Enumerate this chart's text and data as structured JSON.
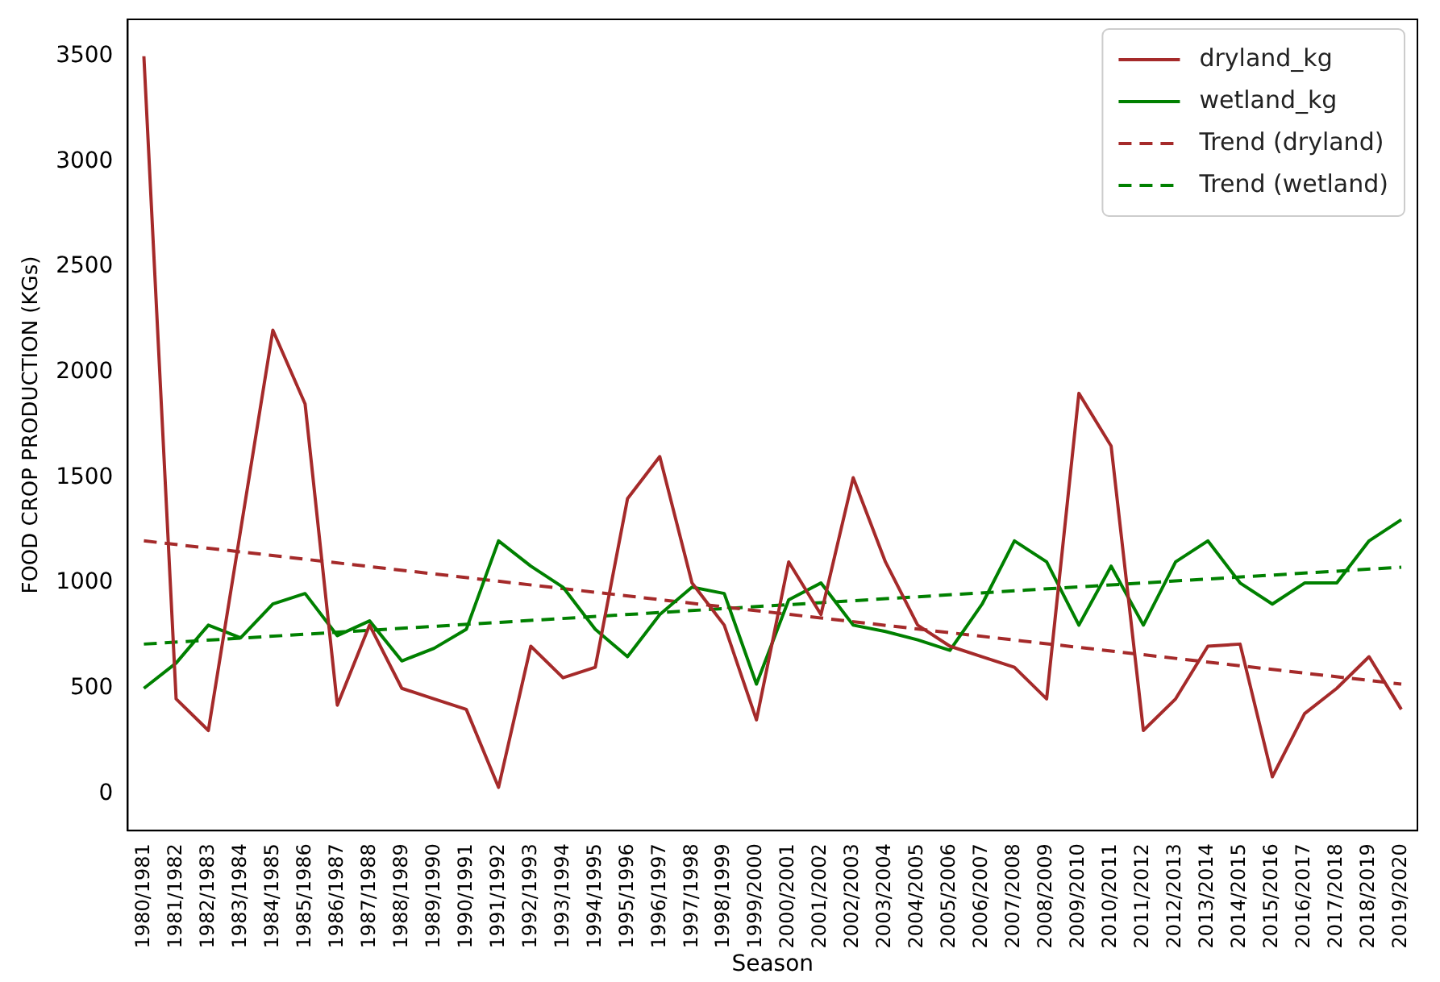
{
  "chart_data": {
    "type": "line",
    "xlabel": "Season",
    "ylabel": "FOOD CROP PRODUCTION (KGs)",
    "categories": [
      "1980/1981",
      "1981/1982",
      "1982/1983",
      "1983/1984",
      "1984/1985",
      "1985/1986",
      "1986/1987",
      "1987/1988",
      "1988/1989",
      "1989/1990",
      "1990/1991",
      "1991/1992",
      "1992/1993",
      "1993/1994",
      "1994/1995",
      "1995/1996",
      "1996/1997",
      "1997/1998",
      "1998/1999",
      "1999/2000",
      "2000/2001",
      "2001/2002",
      "2002/2003",
      "2003/2004",
      "2004/2005",
      "2005/2006",
      "2006/2007",
      "2007/2008",
      "2008/2009",
      "2009/2010",
      "2010/2011",
      "2011/2012",
      "2012/2013",
      "2013/2014",
      "2014/2015",
      "2015/2016",
      "2016/2017",
      "2017/2018",
      "2018/2019",
      "2019/2020"
    ],
    "series": [
      {
        "name": "dryland_kg",
        "color": "#a52a2a",
        "line_style": "solid",
        "values": [
          3500,
          450,
          300,
          1250,
          2200,
          1850,
          420,
          800,
          500,
          450,
          400,
          30,
          700,
          550,
          600,
          1400,
          1600,
          1000,
          800,
          350,
          1100,
          850,
          1500,
          1100,
          800,
          700,
          650,
          600,
          450,
          1900,
          1650,
          300,
          450,
          700,
          710,
          80,
          380,
          500,
          650,
          400
        ]
      },
      {
        "name": "wetland_kg",
        "color": "#008000",
        "line_style": "solid",
        "values": [
          500,
          620,
          800,
          740,
          900,
          950,
          750,
          820,
          630,
          690,
          780,
          1200,
          1080,
          980,
          780,
          650,
          850,
          980,
          950,
          520,
          920,
          1000,
          800,
          770,
          730,
          680,
          900,
          1200,
          1100,
          800,
          1080,
          800,
          1100,
          1200,
          1000,
          900,
          1000,
          1000,
          1200,
          1300
        ]
      },
      {
        "name": "Trend (dryland)",
        "color": "#a52a2a",
        "line_style": "dashed",
        "x": [
          "1980/1981",
          "2019/2020"
        ],
        "values": [
          1200,
          520
        ]
      },
      {
        "name": "Trend (wetland)",
        "color": "#008000",
        "line_style": "dashed",
        "x": [
          "1980/1981",
          "2019/2020"
        ],
        "values": [
          710,
          1075
        ]
      }
    ],
    "ylim": [
      -175,
      3675
    ],
    "yticks": [
      0,
      500,
      1000,
      1500,
      2000,
      2500,
      3000,
      3500
    ],
    "grid": false,
    "legend": "top right",
    "marker": "none"
  }
}
